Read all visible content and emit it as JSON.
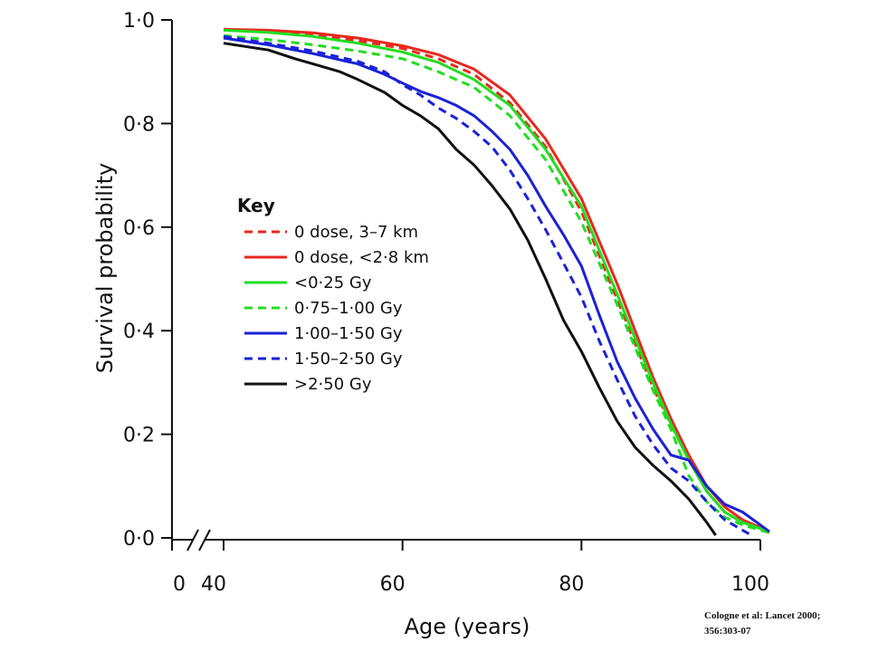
{
  "chart_data": {
    "type": "line",
    "title": "",
    "xlabel": "Age (years)",
    "ylabel": "Survival probability",
    "xlim": [
      40,
      100
    ],
    "ylim": [
      0,
      1
    ],
    "x_ticks": [
      "40",
      "60",
      "80",
      "100"
    ],
    "x_origin_label": "0",
    "y_ticks": [
      "0·0",
      "0·2",
      "0·4",
      "0·6",
      "0·8",
      "1·0"
    ],
    "grid": false,
    "legend_title": "Key",
    "legend_position": "center-left",
    "series": [
      {
        "name": "0 dose, 3–7 km",
        "color": "#e8281e",
        "dash": "dashed",
        "points": [
          [
            40,
            0.98
          ],
          [
            45,
            0.978
          ],
          [
            50,
            0.972
          ],
          [
            55,
            0.96
          ],
          [
            60,
            0.945
          ],
          [
            64,
            0.925
          ],
          [
            68,
            0.895
          ],
          [
            72,
            0.84
          ],
          [
            76,
            0.755
          ],
          [
            80,
            0.63
          ],
          [
            84,
            0.46
          ],
          [
            88,
            0.29
          ],
          [
            90,
            0.22
          ],
          [
            92,
            0.15
          ],
          [
            94,
            0.09
          ],
          [
            96,
            0.05
          ],
          [
            98,
            0.03
          ],
          [
            100,
            0.02
          ],
          [
            101,
            0.01
          ]
        ]
      },
      {
        "name": "0 dose, <2·8 km",
        "color": "#e8281e",
        "dash": "solid",
        "points": [
          [
            40,
            0.982
          ],
          [
            45,
            0.98
          ],
          [
            50,
            0.975
          ],
          [
            55,
            0.965
          ],
          [
            60,
            0.95
          ],
          [
            64,
            0.933
          ],
          [
            68,
            0.905
          ],
          [
            72,
            0.855
          ],
          [
            76,
            0.77
          ],
          [
            80,
            0.655
          ],
          [
            84,
            0.49
          ],
          [
            88,
            0.31
          ],
          [
            90,
            0.23
          ],
          [
            92,
            0.16
          ],
          [
            94,
            0.1
          ],
          [
            96,
            0.06
          ],
          [
            98,
            0.035
          ],
          [
            100,
            0.02
          ],
          [
            101,
            0.012
          ]
        ]
      },
      {
        "name": "<0·25 Gy",
        "color": "#22dd22",
        "dash": "solid",
        "points": [
          [
            40,
            0.98
          ],
          [
            45,
            0.976
          ],
          [
            50,
            0.968
          ],
          [
            55,
            0.955
          ],
          [
            60,
            0.938
          ],
          [
            64,
            0.918
          ],
          [
            68,
            0.885
          ],
          [
            72,
            0.835
          ],
          [
            76,
            0.75
          ],
          [
            80,
            0.64
          ],
          [
            84,
            0.47
          ],
          [
            88,
            0.3
          ],
          [
            90,
            0.22
          ],
          [
            92,
            0.15
          ],
          [
            94,
            0.09
          ],
          [
            96,
            0.05
          ],
          [
            98,
            0.03
          ],
          [
            100,
            0.018
          ],
          [
            101,
            0.01
          ]
        ]
      },
      {
        "name": "0·75–1·00 Gy",
        "color": "#22dd22",
        "dash": "dashed",
        "points": [
          [
            40,
            0.97
          ],
          [
            45,
            0.962
          ],
          [
            50,
            0.952
          ],
          [
            55,
            0.94
          ],
          [
            60,
            0.925
          ],
          [
            64,
            0.9
          ],
          [
            68,
            0.87
          ],
          [
            72,
            0.815
          ],
          [
            76,
            0.73
          ],
          [
            80,
            0.61
          ],
          [
            84,
            0.45
          ],
          [
            88,
            0.285
          ],
          [
            90,
            0.21
          ],
          [
            92,
            0.12
          ],
          [
            94,
            0.07
          ],
          [
            96,
            0.04
          ],
          [
            98,
            0.025
          ],
          [
            100,
            0.015
          ],
          [
            101,
            0.01
          ]
        ]
      },
      {
        "name": "1·00–1·50 Gy",
        "color": "#1a22d6",
        "dash": "solid",
        "points": [
          [
            40,
            0.965
          ],
          [
            45,
            0.952
          ],
          [
            50,
            0.935
          ],
          [
            55,
            0.915
          ],
          [
            58,
            0.895
          ],
          [
            60,
            0.878
          ],
          [
            62,
            0.862
          ],
          [
            64,
            0.85
          ],
          [
            66,
            0.835
          ],
          [
            68,
            0.815
          ],
          [
            70,
            0.785
          ],
          [
            72,
            0.75
          ],
          [
            74,
            0.7
          ],
          [
            76,
            0.64
          ],
          [
            78,
            0.585
          ],
          [
            80,
            0.525
          ],
          [
            82,
            0.43
          ],
          [
            84,
            0.34
          ],
          [
            86,
            0.27
          ],
          [
            88,
            0.21
          ],
          [
            90,
            0.16
          ],
          [
            92,
            0.15
          ],
          [
            94,
            0.1
          ],
          [
            96,
            0.065
          ],
          [
            98,
            0.05
          ],
          [
            100,
            0.025
          ],
          [
            101,
            0.012
          ]
        ]
      },
      {
        "name": "1·50–2·50 Gy",
        "color": "#1a22d6",
        "dash": "dashed",
        "points": [
          [
            40,
            0.968
          ],
          [
            45,
            0.955
          ],
          [
            50,
            0.94
          ],
          [
            55,
            0.92
          ],
          [
            58,
            0.9
          ],
          [
            60,
            0.875
          ],
          [
            62,
            0.855
          ],
          [
            64,
            0.83
          ],
          [
            66,
            0.81
          ],
          [
            68,
            0.785
          ],
          [
            70,
            0.755
          ],
          [
            72,
            0.71
          ],
          [
            74,
            0.655
          ],
          [
            76,
            0.595
          ],
          [
            78,
            0.53
          ],
          [
            80,
            0.465
          ],
          [
            82,
            0.38
          ],
          [
            84,
            0.305
          ],
          [
            86,
            0.235
          ],
          [
            88,
            0.18
          ],
          [
            90,
            0.135
          ],
          [
            92,
            0.11
          ],
          [
            94,
            0.07
          ],
          [
            96,
            0.035
          ],
          [
            98,
            0.015
          ],
          [
            99,
            0.005
          ]
        ]
      },
      {
        "name": ">2·50 Gy",
        "color": "#111111",
        "dash": "solid",
        "points": [
          [
            40,
            0.955
          ],
          [
            45,
            0.942
          ],
          [
            48,
            0.925
          ],
          [
            50,
            0.915
          ],
          [
            53,
            0.9
          ],
          [
            55,
            0.885
          ],
          [
            58,
            0.86
          ],
          [
            60,
            0.835
          ],
          [
            62,
            0.815
          ],
          [
            64,
            0.79
          ],
          [
            66,
            0.75
          ],
          [
            68,
            0.72
          ],
          [
            70,
            0.68
          ],
          [
            72,
            0.635
          ],
          [
            74,
            0.575
          ],
          [
            76,
            0.5
          ],
          [
            78,
            0.42
          ],
          [
            80,
            0.36
          ],
          [
            82,
            0.29
          ],
          [
            84,
            0.225
          ],
          [
            86,
            0.175
          ],
          [
            88,
            0.14
          ],
          [
            90,
            0.11
          ],
          [
            92,
            0.075
          ],
          [
            94,
            0.03
          ],
          [
            95,
            0.005
          ]
        ]
      }
    ]
  },
  "citation": {
    "line1": "Cologne et al: Lancet 2000;",
    "line2": "356:303-07"
  }
}
